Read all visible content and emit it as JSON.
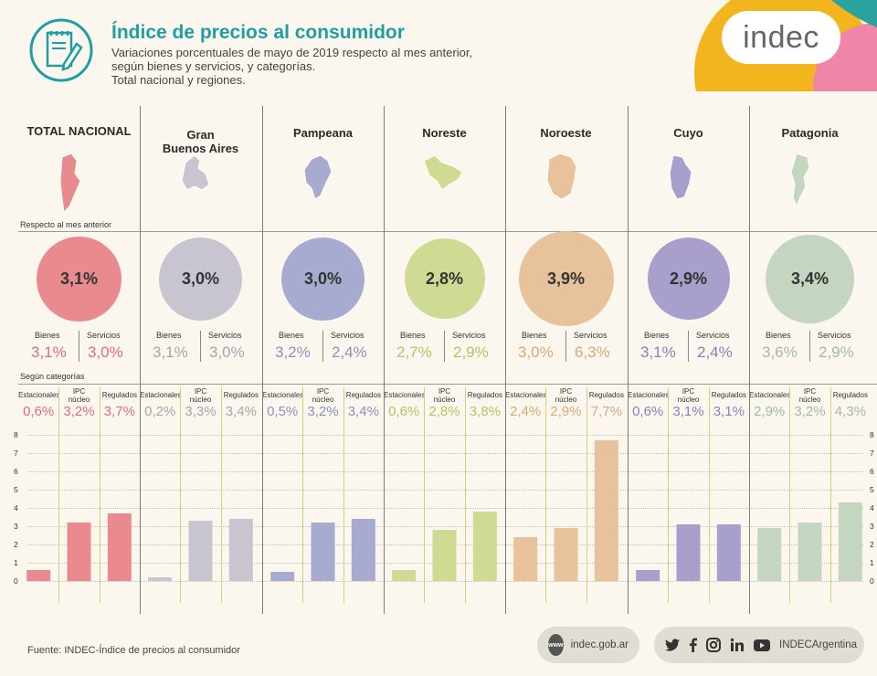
{
  "header": {
    "title": "Índice de precios al consumidor",
    "subtitle_lines": [
      "Variaciones porcentuales de mayo de 2019 respecto al mes anterior,",
      "según bienes y servicios, y categorías.",
      "Total nacional y regiones."
    ],
    "logo_text": "indec",
    "icon": "document-pencil-icon"
  },
  "section_labels": {
    "respecto": "Respecto al mes anterior",
    "segun": "Según categorías"
  },
  "sub_labels": {
    "bienes": "Bienes",
    "servicios": "Servicios"
  },
  "cat_labels": [
    "Estacionales",
    "IPC núcleo",
    "Regulados"
  ],
  "axis_ticks": [
    "8",
    "7",
    "6",
    "5",
    "4",
    "3",
    "2",
    "1",
    "0"
  ],
  "regions": [
    {
      "name": "TOTAL NACIONAL",
      "total": "3,1%",
      "bienes": "3,1%",
      "servicios": "3,0%",
      "estacionales": "0,6%",
      "nucleo": "3,2%",
      "regulados": "3,7%",
      "color": "#e88a8e",
      "text_color": "#e16e75"
    },
    {
      "name": "Gran Buenos Aires",
      "total": "3,0%",
      "bienes": "3,1%",
      "servicios": "3,0%",
      "estacionales": "0,2%",
      "nucleo": "3,3%",
      "regulados": "3,4%",
      "color": "#c9c5d0",
      "text_color": "#a8a3b0"
    },
    {
      "name": "Pampeana",
      "total": "3,0%",
      "bienes": "3,2%",
      "servicios": "2,4%",
      "estacionales": "0,5%",
      "nucleo": "3,2%",
      "regulados": "3,4%",
      "color": "#a6abcf",
      "text_color": "#8a90bf"
    },
    {
      "name": "Noreste",
      "total": "2,8%",
      "bienes": "2,7%",
      "servicios": "2,9%",
      "estacionales": "0,6%",
      "nucleo": "2,8%",
      "regulados": "3,8%",
      "color": "#cfdb92",
      "text_color": "#b4c466"
    },
    {
      "name": "Noroeste",
      "total": "3,9%",
      "bienes": "3,0%",
      "servicios": "6,3%",
      "estacionales": "2,4%",
      "nucleo": "2,9%",
      "regulados": "7,7%",
      "color": "#e8c29a",
      "text_color": "#d9a878"
    },
    {
      "name": "Cuyo",
      "total": "2,9%",
      "bienes": "3,1%",
      "servicios": "2,4%",
      "estacionales": "0,6%",
      "nucleo": "3,1%",
      "regulados": "3,1%",
      "color": "#a89fcc",
      "text_color": "#8a80bd"
    },
    {
      "name": "Patagonia",
      "total": "3,4%",
      "bienes": "3,6%",
      "servicios": "2,9%",
      "estacionales": "2,9%",
      "nucleo": "3,2%",
      "regulados": "4,3%",
      "color": "#c5d6c0",
      "text_color": "#a3bb9d"
    }
  ],
  "chart_data": {
    "type": "bar",
    "categories": [
      "Estacionales",
      "IPC núcleo",
      "Regulados"
    ],
    "groups": [
      "TOTAL NACIONAL",
      "Gran Buenos Aires",
      "Pampeana",
      "Noreste",
      "Noroeste",
      "Cuyo",
      "Patagonia"
    ],
    "series": [
      {
        "group": "TOTAL NACIONAL",
        "values": [
          0.6,
          3.2,
          3.7
        ]
      },
      {
        "group": "Gran Buenos Aires",
        "values": [
          0.2,
          3.3,
          3.4
        ]
      },
      {
        "group": "Pampeana",
        "values": [
          0.5,
          3.2,
          3.4
        ]
      },
      {
        "group": "Noreste",
        "values": [
          0.6,
          2.8,
          3.8
        ]
      },
      {
        "group": "Noroeste",
        "values": [
          2.4,
          2.9,
          7.7
        ]
      },
      {
        "group": "Cuyo",
        "values": [
          0.6,
          3.1,
          3.1
        ]
      },
      {
        "group": "Patagonia",
        "values": [
          2.9,
          3.2,
          4.3
        ]
      }
    ],
    "ylim": [
      0,
      8
    ],
    "yticks": [
      0,
      1,
      2,
      3,
      4,
      5,
      6,
      7,
      8
    ],
    "grid": true
  },
  "footer": {
    "source": "Fuente: INDEC-Índice de precios al consumidor",
    "website": "indec.gob.ar",
    "www": "www",
    "social_handle": "INDECArgentina",
    "social_icons": [
      "twitter-icon",
      "facebook-icon",
      "instagram-icon",
      "linkedin-icon",
      "youtube-icon"
    ]
  }
}
